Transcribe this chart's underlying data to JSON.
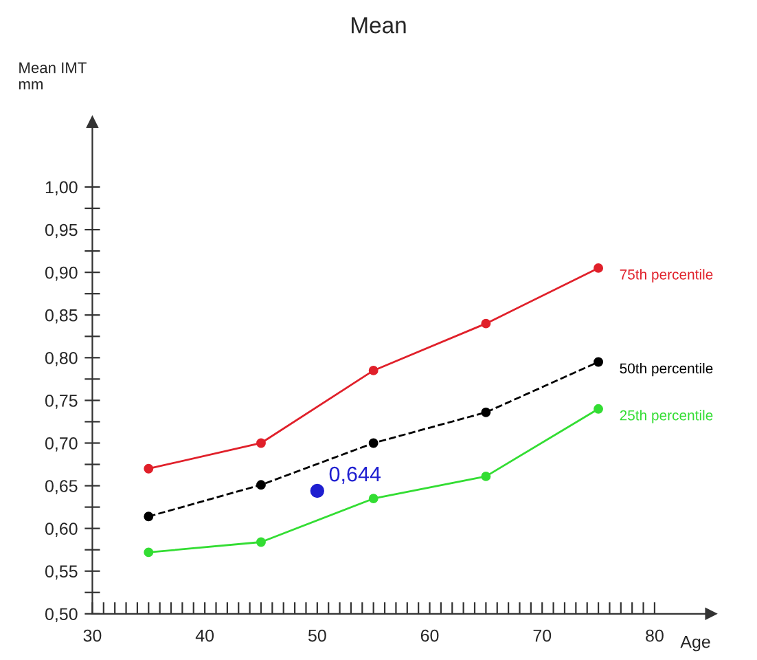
{
  "chart_data": {
    "type": "line",
    "title": "Mean",
    "xlabel": "Age",
    "ylabel": "Mean IMT\nmm",
    "x": [
      35,
      45,
      55,
      65,
      75
    ],
    "series": [
      {
        "name": "75th percentile",
        "color": "#e0202a",
        "values": [
          0.67,
          0.7,
          0.785,
          0.84,
          0.905
        ],
        "line_style": "solid",
        "marker": "circle"
      },
      {
        "name": "50th percentile",
        "color": "#000000",
        "values": [
          0.614,
          0.651,
          0.7,
          0.736,
          0.795
        ],
        "line_style": "dashed",
        "marker": "circle"
      },
      {
        "name": "25th percentile",
        "color": "#33dd33",
        "values": [
          0.572,
          0.584,
          0.635,
          0.661,
          0.74
        ],
        "line_style": "solid",
        "marker": "circle"
      },
      {
        "type": "scatter",
        "color": "#1f1fd0",
        "x": [
          50
        ],
        "values": [
          0.644
        ],
        "value_labels": [
          "0,644"
        ],
        "marker": "circle"
      }
    ],
    "xlim": [
      30,
      85
    ],
    "ylim": [
      0.5,
      1.076
    ],
    "xticks": [
      30,
      {
        "value": 31,
        "label": null
      },
      {
        "value": 32,
        "label": null
      },
      {
        "value": 33,
        "label": null
      },
      {
        "value": 34,
        "label": null
      },
      {
        "value": 35,
        "label": null
      },
      {
        "value": 36,
        "label": null
      },
      {
        "value": 37,
        "label": null
      },
      {
        "value": 38,
        "label": null
      },
      {
        "value": 39,
        "label": null
      },
      40,
      {
        "value": 41,
        "label": null
      },
      {
        "value": 42,
        "label": null
      },
      {
        "value": 43,
        "label": null
      },
      {
        "value": 44,
        "label": null
      },
      {
        "value": 45,
        "label": null
      },
      {
        "value": 46,
        "label": null
      },
      {
        "value": 47,
        "label": null
      },
      {
        "value": 48,
        "label": null
      },
      {
        "value": 49,
        "label": null
      },
      50,
      {
        "value": 51,
        "label": null
      },
      {
        "value": 52,
        "label": null
      },
      {
        "value": 53,
        "label": null
      },
      {
        "value": 54,
        "label": null
      },
      {
        "value": 55,
        "label": null
      },
      {
        "value": 56,
        "label": null
      },
      {
        "value": 57,
        "label": null
      },
      {
        "value": 58,
        "label": null
      },
      {
        "value": 59,
        "label": null
      },
      60,
      {
        "value": 61,
        "label": null
      },
      {
        "value": 62,
        "label": null
      },
      {
        "value": 63,
        "label": null
      },
      {
        "value": 64,
        "label": null
      },
      {
        "value": 65,
        "label": null
      },
      {
        "value": 66,
        "label": null
      },
      {
        "value": 67,
        "label": null
      },
      {
        "value": 68,
        "label": null
      },
      {
        "value": 69,
        "label": null
      },
      70,
      {
        "value": 71,
        "label": null
      },
      {
        "value": 72,
        "label": null
      },
      {
        "value": 73,
        "label": null
      },
      {
        "value": 74,
        "label": null
      },
      {
        "value": 75,
        "label": null
      },
      {
        "value": 76,
        "label": null
      },
      {
        "value": 77,
        "label": null
      },
      {
        "value": 78,
        "label": null
      },
      {
        "value": 79,
        "label": null
      },
      80
    ],
    "yticks": [
      {
        "value": 0.5,
        "label": "0,50"
      },
      {
        "value": 0.525,
        "label": null
      },
      {
        "value": 0.55,
        "label": "0,55"
      },
      {
        "value": 0.575,
        "label": null
      },
      {
        "value": 0.6,
        "label": "0,60"
      },
      {
        "value": 0.625,
        "label": null
      },
      {
        "value": 0.65,
        "label": "0,65"
      },
      {
        "value": 0.675,
        "label": null
      },
      {
        "value": 0.7,
        "label": "0,70"
      },
      {
        "value": 0.725,
        "label": null
      },
      {
        "value": 0.75,
        "label": "0,75"
      },
      {
        "value": 0.775,
        "label": null
      },
      {
        "value": 0.8,
        "label": "0,80"
      },
      {
        "value": 0.825,
        "label": null
      },
      {
        "value": 0.85,
        "label": "0,85"
      },
      {
        "value": 0.875,
        "label": null
      },
      {
        "value": 0.9,
        "label": "0,90"
      },
      {
        "value": 0.925,
        "label": null
      },
      {
        "value": 0.95,
        "label": "0,95"
      },
      {
        "value": 0.975,
        "label": null
      },
      {
        "value": 1.0,
        "label": "1,00"
      }
    ],
    "grid": false,
    "legend": false
  }
}
